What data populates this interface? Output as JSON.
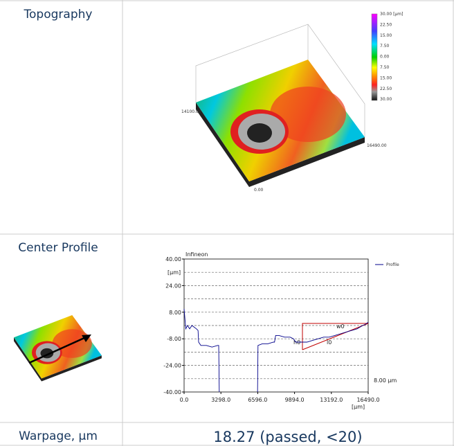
{
  "table": {
    "rows": [
      {
        "label": "Topography",
        "colorbar": {
          "labels": [
            "30.00 [µm]",
            "22.50",
            "15.00",
            "7.50",
            "0.00",
            "7.50",
            "15.00",
            "22.50",
            "30.00"
          ]
        },
        "axis_labels": [
          "14100.00",
          "16490.00",
          "0.00"
        ]
      },
      {
        "label": "Center Profile",
        "chart": {
          "type": "line",
          "title": "Infineon",
          "y_unit": "[µm]",
          "x_unit": "[µm]",
          "xlim": [
            0,
            16490
          ],
          "ylim": [
            -40,
            40
          ],
          "xticks": [
            {
              "value": 0,
              "label": "0.0"
            },
            {
              "value": 3298,
              "label": "3298.0"
            },
            {
              "value": 6596,
              "label": "6596.0"
            },
            {
              "value": 9894,
              "label": "9894.0"
            },
            {
              "value": 13192,
              "label": "13192.0"
            },
            {
              "value": 16490,
              "label": "16490.0"
            }
          ],
          "yticks": [
            {
              "value": 40,
              "label": "40.00"
            },
            {
              "value": 24,
              "label": "24.00"
            },
            {
              "value": 8,
              "label": "8.00"
            },
            {
              "value": -8,
              "label": "-8.00"
            },
            {
              "value": -24,
              "label": "-24.00"
            },
            {
              "value": -40,
              "label": "-40.00"
            }
          ],
          "grid_lines": [
            32,
            24,
            16,
            8,
            0,
            -8,
            -16,
            -24,
            -32
          ],
          "series": [
            {
              "name": "Profile",
              "color": "#00008b",
              "x": [
                0,
                50,
                150,
                300,
                500,
                700,
                900,
                1100,
                1250,
                1300,
                1500,
                2000,
                2500,
                3000,
                3100,
                3150,
                4800,
                6580,
                6620,
                7000,
                7500,
                8000,
                8100,
                8200,
                8500,
                9000,
                9500,
                9800,
                10000,
                10500,
                11000,
                11500,
                12000,
                12500,
                13000,
                13500,
                14000,
                14500,
                15000,
                15500,
                16000,
                16300,
                16490
              ],
              "values": [
                10,
                6,
                -2,
                0,
                -2,
                0,
                -1,
                -2,
                -3,
                -10,
                -12,
                -12,
                -13,
                -12,
                -12,
                -40,
                null,
                -40,
                -12,
                -11,
                -11,
                -10,
                -10,
                -6,
                -6,
                -7,
                -7,
                -8,
                -10,
                -10,
                -10,
                -9,
                -8,
                -7,
                -7,
                -6,
                -5,
                -4,
                -3,
                -2,
                0,
                1,
                2
              ]
            }
          ],
          "annotations": [
            "h0",
            "w0",
            "l0",
            "8.00 µm"
          ]
        }
      },
      {
        "label": "Warpage, µm",
        "value_text": "18.27 (passed, <20)"
      }
    ]
  }
}
